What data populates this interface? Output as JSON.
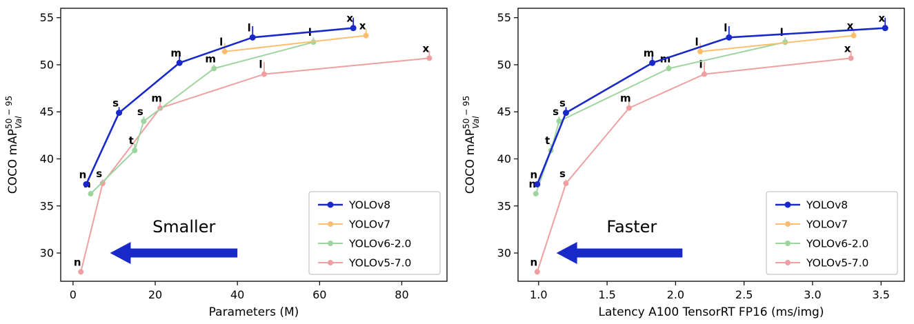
{
  "figure": {
    "background": "#ffffff",
    "accent_blue": "#1928c8"
  },
  "chart_data": [
    {
      "type": "line",
      "title": "",
      "xlabel": "Parameters (M)",
      "ylabel": {
        "text": "COCO mAP",
        "sup": "50 − 95",
        "sub": "Val"
      },
      "xlim": [
        -3,
        91
      ],
      "ylim": [
        27,
        56
      ],
      "xticks": [
        0,
        20,
        40,
        60,
        80
      ],
      "xtick_labels": [
        "0",
        "20",
        "40",
        "60",
        "80"
      ],
      "yticks": [
        30,
        35,
        40,
        45,
        50,
        55
      ],
      "ytick_labels": [
        "30",
        "35",
        "40",
        "45",
        "50",
        "55"
      ],
      "grid": false,
      "legend": {
        "position": "lower right",
        "entries": [
          "YOLOv8",
          "YOLOv7",
          "YOLOv6-2.0",
          "YOLOv5-7.0"
        ]
      },
      "annotation": {
        "text": "Smaller",
        "text_x": 27,
        "text_y": 32.2,
        "arrow_tail_x": 40,
        "arrow_head_x": 9,
        "arrow_y": 30.0
      },
      "series": [
        {
          "name": "YOLOv8",
          "color": "#1928c8",
          "line_width": 2.6,
          "marker_r": 4.5,
          "x": [
            3.2,
            11.2,
            25.9,
            43.7,
            68.2
          ],
          "y": [
            37.3,
            44.9,
            50.2,
            52.9,
            53.9
          ],
          "point_labels": [
            "n",
            "s",
            "m",
            "l",
            "x"
          ],
          "err": [
            0.3,
            0.6,
            0.9,
            1.2,
            1.1
          ]
        },
        {
          "name": "YOLOv7",
          "color": "#fcbe6e",
          "line_width": 2.0,
          "marker_r": 4,
          "x": [
            36.9,
            71.3
          ],
          "y": [
            51.4,
            53.1
          ],
          "point_labels": [
            "l",
            "x"
          ],
          "err": [
            0.9,
            0.7
          ]
        },
        {
          "name": "YOLOv6-2.0",
          "color": "#9ed49e",
          "line_width": 2.0,
          "marker_r": 4,
          "x": [
            4.3,
            15.0,
            17.2,
            34.3,
            58.5
          ],
          "y": [
            36.3,
            40.9,
            44.0,
            49.6,
            52.4
          ],
          "point_labels": [
            "n",
            "t",
            "s",
            "m",
            "l"
          ],
          "err": [
            0.3,
            0.7,
            0.5,
            0.4,
            0.5
          ]
        },
        {
          "name": "YOLOv5-7.0",
          "color": "#ef9f9f",
          "line_width": 2.0,
          "marker_r": 4,
          "x": [
            1.9,
            7.2,
            21.2,
            46.5,
            86.7
          ],
          "y": [
            28.0,
            37.4,
            45.4,
            49.0,
            50.7
          ],
          "point_labels": [
            "n",
            "s",
            "m",
            "l",
            "x"
          ],
          "err": [
            0.3,
            0.4,
            0.7,
            1.3,
            0.8
          ]
        }
      ]
    },
    {
      "type": "line",
      "title": "",
      "xlabel": "Latency A100 TensorRT FP16 (ms/img)",
      "ylabel": {
        "text": "COCO mAP",
        "sup": "50 − 95",
        "sub": "Val"
      },
      "xlim": [
        0.85,
        3.67
      ],
      "ylim": [
        27,
        56
      ],
      "xticks": [
        1.0,
        1.5,
        2.0,
        2.5,
        3.0,
        3.5
      ],
      "xtick_labels": [
        "1.0",
        "1.5",
        "2.0",
        "2.5",
        "3.0",
        "3.5"
      ],
      "yticks": [
        30,
        35,
        40,
        45,
        50,
        55
      ],
      "ytick_labels": [
        "30",
        "35",
        "40",
        "45",
        "50",
        "55"
      ],
      "grid": false,
      "legend": {
        "position": "lower right",
        "entries": [
          "YOLOv8",
          "YOLOv7",
          "YOLOv6-2.0",
          "YOLOv5-7.0"
        ]
      },
      "annotation": {
        "text": "Faster",
        "text_x": 1.68,
        "text_y": 32.2,
        "arrow_tail_x": 2.05,
        "arrow_head_x": 1.13,
        "arrow_y": 30.0
      },
      "series": [
        {
          "name": "YOLOv8",
          "color": "#1928c8",
          "line_width": 2.6,
          "marker_r": 4.5,
          "x": [
            0.99,
            1.2,
            1.83,
            2.39,
            3.53
          ],
          "y": [
            37.3,
            44.9,
            50.2,
            52.9,
            53.9
          ],
          "point_labels": [
            "n",
            "s",
            "m",
            "l",
            "x"
          ],
          "err": [
            0.3,
            0.6,
            0.9,
            1.2,
            1.1
          ]
        },
        {
          "name": "YOLOv7",
          "color": "#fcbe6e",
          "line_width": 2.0,
          "marker_r": 4,
          "x": [
            2.18,
            3.3
          ],
          "y": [
            51.4,
            53.1
          ],
          "point_labels": [
            "l",
            "x"
          ],
          "err": [
            0.9,
            0.7
          ]
        },
        {
          "name": "YOLOv6-2.0",
          "color": "#9ed49e",
          "line_width": 2.0,
          "marker_r": 4,
          "x": [
            0.98,
            1.09,
            1.15,
            1.95,
            2.8
          ],
          "y": [
            36.3,
            40.9,
            44.0,
            49.6,
            52.4
          ],
          "point_labels": [
            "n",
            "t",
            "s",
            "m",
            "l"
          ],
          "err": [
            0.3,
            0.7,
            0.5,
            0.4,
            0.5
          ]
        },
        {
          "name": "YOLOv5-7.0",
          "color": "#ef9f9f",
          "line_width": 2.0,
          "marker_r": 4,
          "x": [
            0.99,
            1.2,
            1.66,
            2.21,
            3.28
          ],
          "y": [
            28.0,
            37.4,
            45.4,
            49.0,
            50.7
          ],
          "point_labels": [
            "n",
            "s",
            "m",
            "l",
            "x"
          ],
          "err": [
            0.3,
            0.4,
            0.7,
            1.3,
            0.8
          ]
        }
      ]
    }
  ]
}
